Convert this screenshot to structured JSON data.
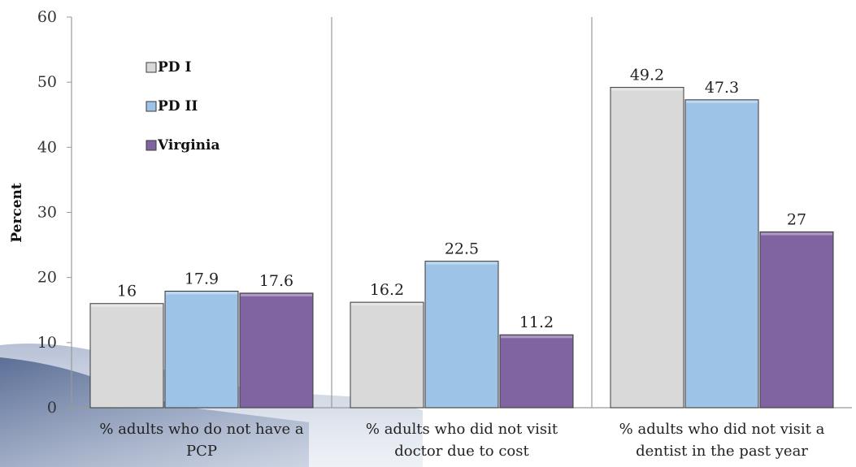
{
  "chart_data": {
    "type": "bar",
    "title": "",
    "xlabel": "",
    "ylabel": "Percent",
    "ylim": [
      0,
      60
    ],
    "yticks": [
      0,
      10,
      20,
      30,
      40,
      50,
      60
    ],
    "grid": false,
    "legend_position": "top-left",
    "categories": [
      [
        "% adults who do not have a",
        "PCP"
      ],
      [
        "% adults who did not visit",
        "doctor due to cost"
      ],
      [
        "% adults who did not visit a",
        "dentist in the past year"
      ]
    ],
    "series": [
      {
        "name": "PD I",
        "values": [
          16,
          16.2,
          49.2
        ],
        "color": "#d9d9d9"
      },
      {
        "name": "PD II",
        "values": [
          17.9,
          22.5,
          47.3
        ],
        "color": "#9dc3e6"
      },
      {
        "name": "Virginia",
        "values": [
          17.6,
          11.2,
          27
        ],
        "color": "#8064a2"
      }
    ],
    "value_labels": [
      [
        "16",
        "16.2",
        "49.2"
      ],
      [
        "17.9",
        "22.5",
        "47.3"
      ],
      [
        "17.6",
        "11.2",
        "27"
      ]
    ]
  }
}
